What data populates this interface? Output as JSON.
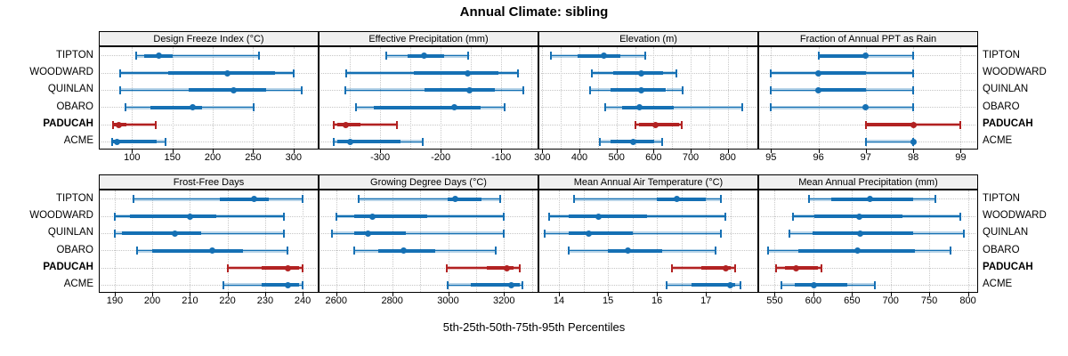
{
  "title": "Annual Climate: sibling",
  "caption": "5th-25th-50th-75th-95th Percentiles",
  "chart_data": {
    "type": "dotplot",
    "title": "Annual Climate: sibling",
    "caption": "5th-25th-50th-75th-95th Percentiles",
    "legend_note": "whisker ends = 5th/95th, pale band = 5-25 and 75-95, dark band = 25-75, dot = median",
    "sites": [
      "TIPTON",
      "WOODWARD",
      "QUINLAN",
      "OBARO",
      "PADUCAH",
      "ACME"
    ],
    "highlight_site": "PADUCAH",
    "colors": {
      "default": "#1570b4",
      "highlight": "#b22222",
      "grid": "#c9c9c9",
      "strip_bg": "#f0f0f0",
      "border": "#000000"
    },
    "layout": {
      "grid_rows": 2,
      "grid_cols": 4,
      "right_axis_labels": true
    },
    "panels": [
      {
        "title": "Design Freeze Index (°C)",
        "xlim": [
          60,
          330
        ],
        "grid": [
          100,
          150,
          200,
          250,
          300
        ],
        "ticks": [
          100,
          150,
          200,
          250,
          300
        ],
        "values": [
          [
            105,
            115,
            133,
            150,
            257
          ],
          [
            85,
            145,
            218,
            277,
            300
          ],
          [
            85,
            170,
            226,
            266,
            310
          ],
          [
            92,
            123,
            175,
            187,
            251
          ],
          [
            76,
            78,
            84,
            93,
            129
          ],
          [
            75,
            77,
            82,
            130,
            142
          ]
        ]
      },
      {
        "title": "Effective Precipitation (mm)",
        "xlim": [
          -400,
          -40
        ],
        "grid": [
          -350,
          -300,
          -250,
          -200,
          -150,
          -100,
          -50
        ],
        "ticks": [
          -300,
          -200,
          -100
        ],
        "values": [
          [
            -290,
            -254,
            -227,
            -195,
            -154
          ],
          [
            -356,
            -244,
            -156,
            -105,
            -72
          ],
          [
            -357,
            -227,
            -152,
            -110,
            -63
          ],
          [
            -340,
            -310,
            -178,
            -134,
            -95
          ],
          [
            -377,
            -371,
            -356,
            -332,
            -272
          ],
          [
            -376,
            -371,
            -349,
            -266,
            -229
          ]
        ]
      },
      {
        "title": "Elevation (m)",
        "xlim": [
          292,
          880
        ],
        "grid": [
          300,
          350,
          400,
          450,
          500,
          550,
          600,
          650,
          700,
          750,
          800,
          850
        ],
        "ticks": [
          300,
          400,
          500,
          600,
          700,
          800
        ],
        "values": [
          [
            323,
            396,
            466,
            511,
            577
          ],
          [
            434,
            491,
            567,
            626,
            662
          ],
          [
            428,
            483,
            567,
            634,
            679
          ],
          [
            469,
            515,
            563,
            654,
            840
          ],
          [
            551,
            560,
            604,
            668,
            675
          ],
          [
            456,
            483,
            545,
            602,
            622
          ]
        ]
      },
      {
        "title": "Fraction of Annual PPT as Rain",
        "xlim": [
          94.75,
          99.35
        ],
        "grid": [
          95,
          96,
          97,
          98,
          99
        ],
        "ticks": [
          95,
          96,
          97,
          98,
          99
        ],
        "values": [
          [
            96,
            96,
            97,
            97,
            98
          ],
          [
            95,
            96,
            96,
            97,
            98
          ],
          [
            95,
            96,
            96,
            97,
            98
          ],
          [
            95,
            97,
            97,
            97,
            98
          ],
          [
            97,
            97,
            98,
            98,
            99
          ],
          [
            97,
            98,
            98,
            98,
            98
          ]
        ]
      },
      {
        "title": "Frost-Free Days",
        "xlim": [
          186,
          244
        ],
        "grid": [
          190,
          200,
          210,
          220,
          230,
          240
        ],
        "ticks": [
          190,
          200,
          210,
          220,
          230,
          240
        ],
        "values": [
          [
            195,
            218,
            227,
            231,
            240
          ],
          [
            190,
            194,
            210,
            217,
            235
          ],
          [
            190,
            192,
            206,
            213,
            235
          ],
          [
            196,
            200,
            216,
            224,
            236
          ],
          [
            220,
            229,
            236,
            239,
            240
          ],
          [
            219,
            229,
            236,
            239,
            240
          ]
        ]
      },
      {
        "title": "Growing Degree Days (°C)",
        "xlim": [
          2540,
          3320
        ],
        "grid": [
          2600,
          2700,
          2800,
          2900,
          3000,
          3100,
          3200,
          3300
        ],
        "ticks": [
          2600,
          2800,
          3000,
          3200
        ],
        "values": [
          [
            2680,
            3000,
            3025,
            3120,
            3185
          ],
          [
            2600,
            2665,
            2730,
            2925,
            3200
          ],
          [
            2585,
            2665,
            2715,
            2850,
            3200
          ],
          [
            2665,
            2750,
            2840,
            2955,
            3170
          ],
          [
            2995,
            3140,
            3210,
            3235,
            3255
          ],
          [
            3000,
            3080,
            3225,
            3255,
            3265
          ]
        ]
      },
      {
        "title": "Mean Annual Air Temperature (°C)",
        "xlim": [
          13.6,
          18.05
        ],
        "grid": [
          14,
          14.5,
          15,
          15.5,
          16,
          16.5,
          17,
          17.5
        ],
        "ticks": [
          14,
          15,
          16,
          17
        ],
        "values": [
          [
            14.3,
            16.0,
            16.4,
            17.0,
            17.3
          ],
          [
            13.8,
            14.2,
            14.8,
            15.8,
            17.4
          ],
          [
            13.7,
            14.2,
            14.6,
            15.5,
            17.3
          ],
          [
            14.2,
            15.0,
            15.4,
            16.1,
            17.2
          ],
          [
            16.3,
            16.9,
            17.4,
            17.5,
            17.6
          ],
          [
            16.2,
            16.7,
            17.5,
            17.6,
            17.7
          ]
        ]
      },
      {
        "title": "Mean Annual Precipitation (mm)",
        "xlim": [
          530,
          812
        ],
        "grid": [
          550,
          600,
          650,
          700,
          750,
          800
        ],
        "ticks": [
          550,
          600,
          650,
          700,
          750,
          800
        ],
        "values": [
          [
            595,
            623,
            673,
            729,
            758
          ],
          [
            574,
            601,
            659,
            715,
            790
          ],
          [
            569,
            599,
            661,
            729,
            795
          ],
          [
            541,
            581,
            657,
            731,
            777
          ],
          [
            552,
            563,
            578,
            606,
            610
          ],
          [
            559,
            576,
            601,
            644,
            680
          ]
        ]
      }
    ]
  }
}
